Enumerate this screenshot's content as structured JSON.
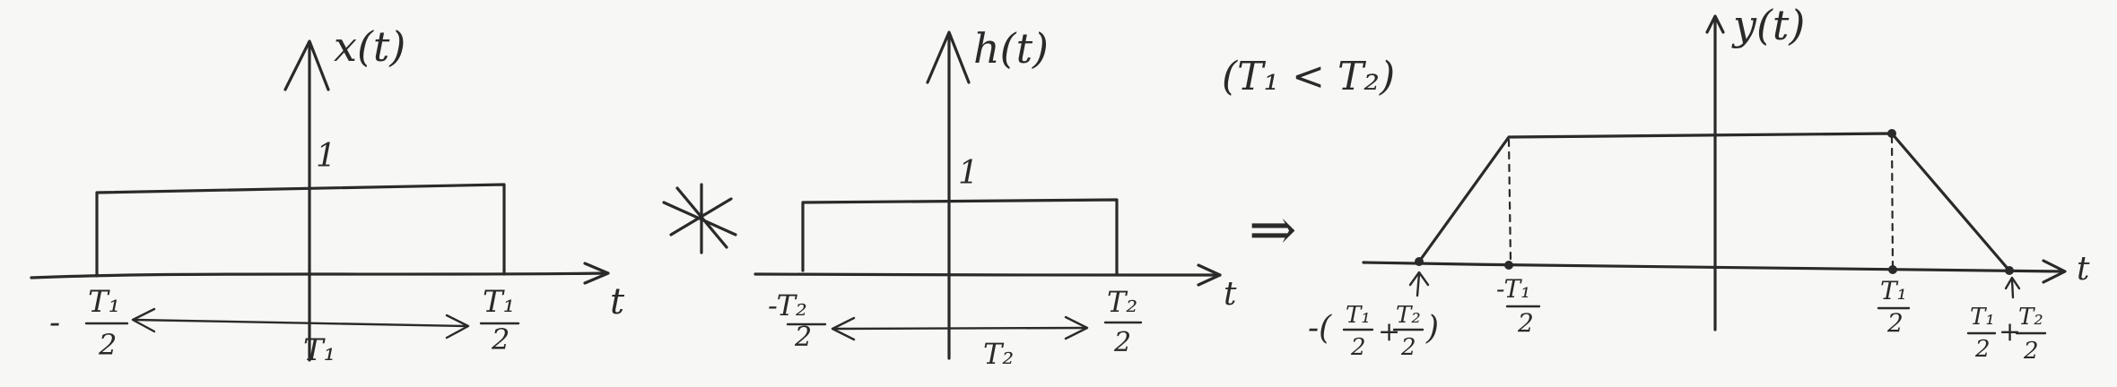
{
  "panels": {
    "x": {
      "title": "x(t)",
      "height_label": "1",
      "axis_label": "t",
      "left_sign": "-",
      "left_num": "T₁",
      "left_den": "2",
      "right_num": "T₁",
      "right_den": "2",
      "width_label": "T₁"
    },
    "h": {
      "title": "h(t)",
      "height_label": "1",
      "axis_label": "t",
      "left_num": "-T₂",
      "left_den": "2",
      "right_num": "T₂",
      "right_den": "2",
      "width_label": "T₂"
    },
    "y": {
      "title": "y(t)",
      "axis_label": "t",
      "left_outer_prefix": "-(",
      "left_outer_a_num": "T₁",
      "left_outer_a_den": "2",
      "left_outer_plus": "+",
      "left_outer_b_num": "T₂",
      "left_outer_b_den": "2",
      "left_outer_suffix": ")",
      "left_inner_num": "-T₁",
      "left_inner_den": "2",
      "right_inner_num": "T₁",
      "right_inner_den": "2",
      "right_outer_a_num": "T₁",
      "right_outer_a_den": "2",
      "right_outer_plus": "+",
      "right_outer_b_num": "T₂",
      "right_outer_b_den": "2"
    }
  },
  "operators": {
    "convolution": "✱",
    "implies": "⇒",
    "condition": "(T₁ < T₂)"
  }
}
